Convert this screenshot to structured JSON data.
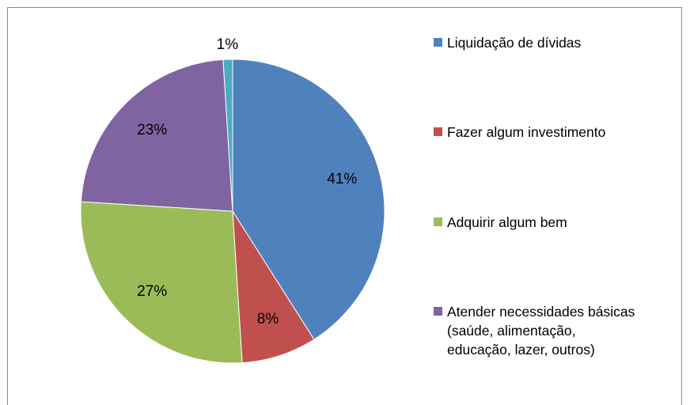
{
  "chart_data": {
    "type": "pie",
    "categories": [
      "Liquidação de dívidas",
      "Fazer algum investimento",
      "Adquirir algum bem",
      "Atender necessidades básicas (saúde, alimentação, educação, lazer, outros)",
      null
    ],
    "values": [
      41,
      8,
      27,
      23,
      1
    ],
    "value_labels": [
      "41%",
      "8%",
      "27%",
      "23%",
      "1%"
    ],
    "colors": [
      "#4f81bd",
      "#c0504d",
      "#9bbb59",
      "#8064a2",
      "#4bacc6"
    ],
    "legend": "right"
  }
}
